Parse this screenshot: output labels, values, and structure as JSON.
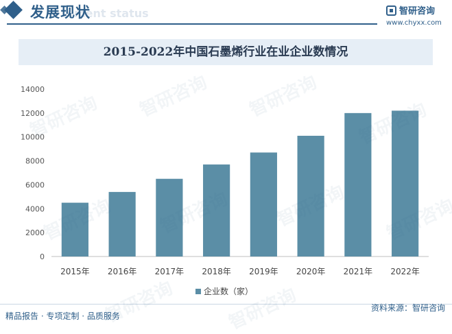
{
  "header": {
    "section_title": "发展现状",
    "section_subtitle": "ment status",
    "logo_text": "智研咨询",
    "logo_url": "www.chyxx.com"
  },
  "footer": {
    "left": "精品报告 · 专项定制 · 品质服务",
    "source": "资料来源：智研咨询"
  },
  "watermark": "智研咨询",
  "colors": {
    "bar": "#5b8ea6",
    "accent": "#2f5f8a"
  },
  "chart_data": {
    "type": "bar",
    "title": "2015-2022年中国石墨烯行业在业企业数情况",
    "categories": [
      "2015年",
      "2016年",
      "2017年",
      "2018年",
      "2019年",
      "2020年",
      "2021年",
      "2022年"
    ],
    "series": [
      {
        "name": "企业数（家）",
        "values": [
          4500,
          5400,
          6500,
          7700,
          8700,
          10100,
          12000,
          12200
        ]
      }
    ],
    "ylim": [
      0,
      14000
    ],
    "yticks": [
      0,
      2000,
      4000,
      6000,
      8000,
      10000,
      12000,
      14000
    ],
    "grid": false,
    "legend": "bottom"
  }
}
